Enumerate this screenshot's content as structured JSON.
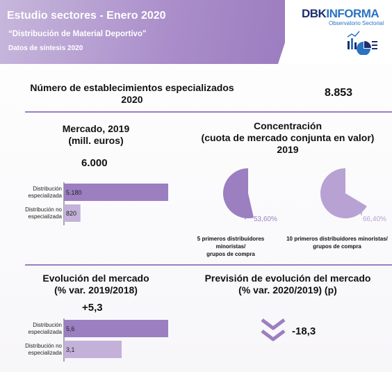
{
  "header": {
    "title": "Estudio sectores - Enero 2020",
    "subtitle": "“Distribución de Material Deportivo\"",
    "subtitle2": "Datos de síntesis 2020",
    "logo_part1": "DBK",
    "logo_part2": "INFORMA",
    "logo_sub": "Observatorio Sectorial",
    "accent": "#9b7fc0"
  },
  "establishments": {
    "label_line1": "Número de establecimientos especializados",
    "label_line2": "2020",
    "value": "8.853"
  },
  "market": {
    "label_line1": "Mercado, 2019",
    "label_line2": "(mill. euros)",
    "total": "6.000"
  },
  "concentration": {
    "label_line1": "Concentración",
    "label_line2": "(cuota de mercado conjunta en valor)",
    "label_line3": "2019",
    "cap1_line1": "5 primeros distribuidores minoristas/",
    "cap1_line2": "grupos de compra",
    "cap2_line1": "10 primeros distribuidores minoristas/",
    "cap2_line2": "grupos de compra"
  },
  "evolution": {
    "label_line1": "Evolución del mercado",
    "label_line2": "(% var. 2019/2018)",
    "total": "+5,3"
  },
  "forecast": {
    "label_line1": "Previsión de evolución del mercado",
    "label_line2": "(% var. 2020/2019) (p)",
    "value": "-18,3",
    "icon": "double-chevron-down-icon"
  },
  "chart_data": [
    {
      "type": "bar",
      "orientation": "horizontal",
      "categories": [
        "Distribución especializada",
        "Distribución no especializada"
      ],
      "category_lines": [
        [
          "Distribución",
          "especializada"
        ],
        [
          "Distribución no",
          "especializada"
        ]
      ],
      "values": [
        5180,
        820
      ],
      "value_labels": [
        "5.180",
        "820"
      ],
      "colors": [
        "#9b7fc0",
        "#c3b1da"
      ],
      "xlim": [
        0,
        5180
      ]
    },
    {
      "type": "pie",
      "values": [
        53.6,
        46.4
      ],
      "value_label": "53,60%",
      "colors": [
        "#9b7fc0",
        "#ffffff"
      ]
    },
    {
      "type": "pie",
      "values": [
        66.4,
        33.6
      ],
      "value_label": "66,40%",
      "colors": [
        "#b7a2d3",
        "#ffffff"
      ]
    },
    {
      "type": "bar",
      "orientation": "horizontal",
      "categories": [
        "Distribución especializada",
        "Distribución no especializada"
      ],
      "category_lines": [
        [
          "Distribución",
          "especializada"
        ],
        [
          "Distribución no",
          "especializada"
        ]
      ],
      "values": [
        5.6,
        3.1
      ],
      "value_labels": [
        "5,6",
        "3,1"
      ],
      "colors": [
        "#9b7fc0",
        "#c3b1da"
      ],
      "xlim": [
        0,
        5.6
      ]
    }
  ]
}
